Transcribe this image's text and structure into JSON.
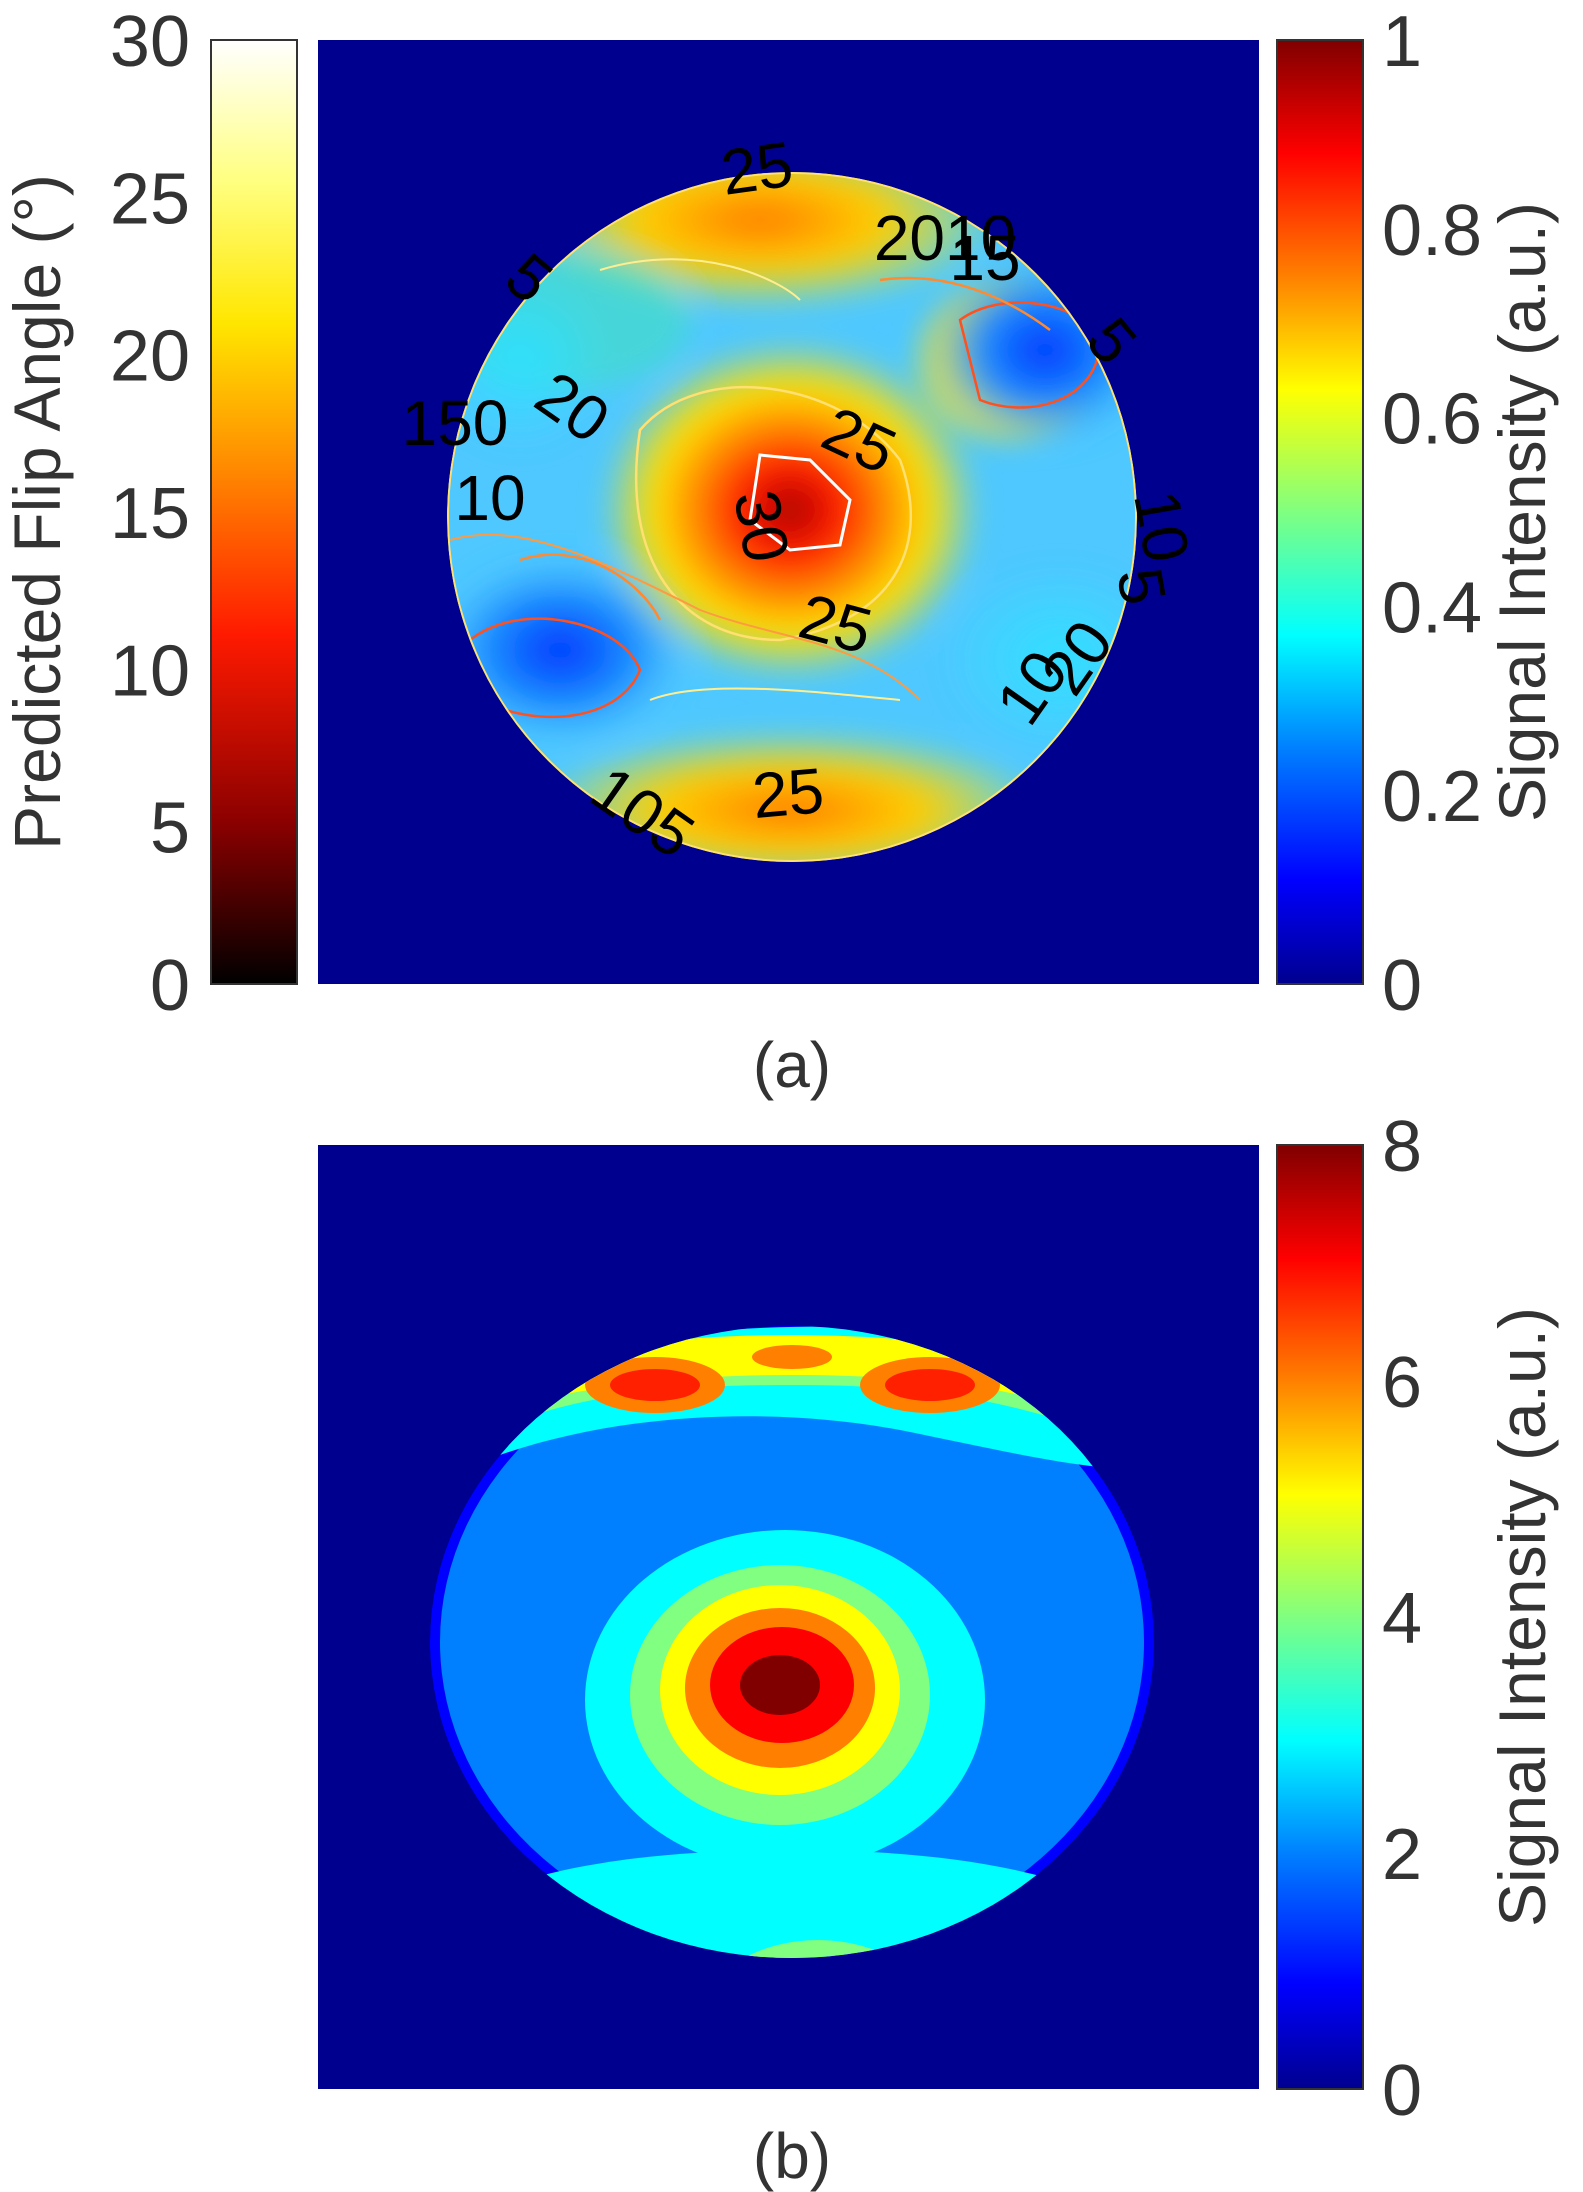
{
  "chart_data": [
    {
      "id": "a",
      "type": "heatmap",
      "caption": "(a)",
      "description_of_content": "",
      "colorbars": [
        {
          "side": "left",
          "label": "Predicted Flip Angle (°)",
          "range": [
            0,
            30
          ],
          "ticks": [
            "0",
            "5",
            "10",
            "15",
            "20",
            "25",
            "30"
          ],
          "colormap": "hot",
          "colors": [
            "#000000",
            "#8a0000",
            "#ff1a00",
            "#ff8c00",
            "#ffe600",
            "#ffff80",
            "#ffffff"
          ]
        },
        {
          "side": "right",
          "label": "Signal Intensity (a.u.)",
          "range": [
            0,
            1
          ],
          "ticks": [
            "0",
            "0.2",
            "0.4",
            "0.6",
            "0.8",
            "1"
          ],
          "colormap": "jet",
          "colors": [
            "#00008f",
            "#0000ff",
            "#0080ff",
            "#00ffff",
            "#80ff80",
            "#ffff00",
            "#ff8000",
            "#ff0000",
            "#800000"
          ]
        }
      ],
      "contour_labels": [
        "25",
        "2010",
        "15",
        "5",
        "5",
        "20",
        "150",
        "10",
        "25",
        "30",
        "10",
        "5",
        "10",
        "20",
        "25",
        "105",
        "25"
      ],
      "background_color": "#00008f"
    },
    {
      "id": "b",
      "type": "heatmap",
      "caption": "(b)",
      "colorbars": [
        {
          "side": "right",
          "label": "Signal Intensity (a.u.)",
          "range": [
            0,
            8
          ],
          "ticks": [
            "0",
            "2",
            "4",
            "6",
            "8"
          ],
          "colormap": "jet",
          "colors": [
            "#00008f",
            "#0000ff",
            "#0080ff",
            "#00ffff",
            "#80ff80",
            "#ffff00",
            "#ff8000",
            "#ff0000",
            "#800000"
          ]
        }
      ],
      "background_color": "#00008f"
    }
  ]
}
